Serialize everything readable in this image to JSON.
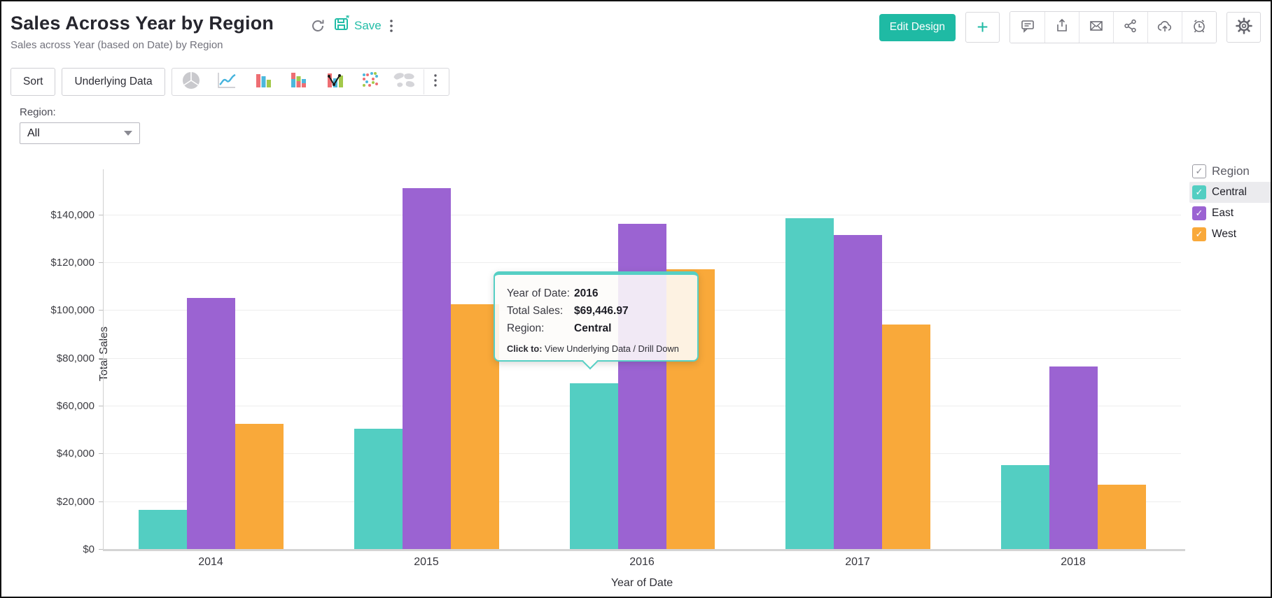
{
  "header": {
    "title": "Sales Across Year by Region",
    "subtitle": "Sales across Year (based on Date) by Region",
    "save_label": "Save",
    "edit_design_label": "Edit Design",
    "action_icons": [
      "refresh-icon",
      "save-icon",
      "more-vertical-icon"
    ],
    "right_icons": [
      "comment-icon",
      "export-icon",
      "email-icon",
      "share-icon",
      "cloud-upload-icon",
      "alarm-icon"
    ],
    "accent_color": "#1fbaa4"
  },
  "toolbar": {
    "sort_label": "Sort",
    "underlying_data_label": "Underlying Data",
    "chart_types": [
      "pie",
      "line",
      "bar",
      "stacked-bar",
      "combo",
      "scatter",
      "map"
    ]
  },
  "filter": {
    "label": "Region:",
    "value": "All"
  },
  "legend": {
    "title": "Region",
    "items": [
      {
        "label": "Central",
        "color": "#53cec2",
        "checked": true,
        "hovered": true
      },
      {
        "label": "East",
        "color": "#9b63d2",
        "checked": true,
        "hovered": false
      },
      {
        "label": "West",
        "color": "#f9a93a",
        "checked": true,
        "hovered": false
      }
    ]
  },
  "tooltip": {
    "rows": [
      {
        "label": "Year of Date:",
        "value": "2016"
      },
      {
        "label": "Total Sales:",
        "value": "$69,446.97"
      },
      {
        "label": "Region:",
        "value": "Central"
      }
    ],
    "footer_label": "Click to:",
    "footer_text": " View Underlying Data / Drill Down"
  },
  "chart_data": {
    "type": "bar",
    "title": "Sales Across Year by Region",
    "categories": [
      "2014",
      "2015",
      "2016",
      "2017",
      "2018"
    ],
    "series": [
      {
        "name": "Central",
        "color": "#53cec2",
        "values": [
          16300,
          50300,
          69446.97,
          138500,
          35000
        ]
      },
      {
        "name": "East",
        "color": "#9b63d2",
        "values": [
          105000,
          151000,
          136000,
          131500,
          76500
        ]
      },
      {
        "name": "West",
        "color": "#f9a93a",
        "values": [
          52400,
          102500,
          117000,
          94000,
          27000
        ]
      }
    ],
    "xlabel": "Year of Date",
    "ylabel": "Total Sales",
    "ylim": [
      0,
      157500
    ],
    "ytick_step": 20000,
    "yticks": [
      "$0",
      "$20,000",
      "$40,000",
      "$60,000",
      "$80,000",
      "$100,000",
      "$120,000",
      "$140,000"
    ],
    "grid": true,
    "legend_position": "right",
    "highlighted": {
      "category": "2016",
      "series": "Central"
    }
  }
}
